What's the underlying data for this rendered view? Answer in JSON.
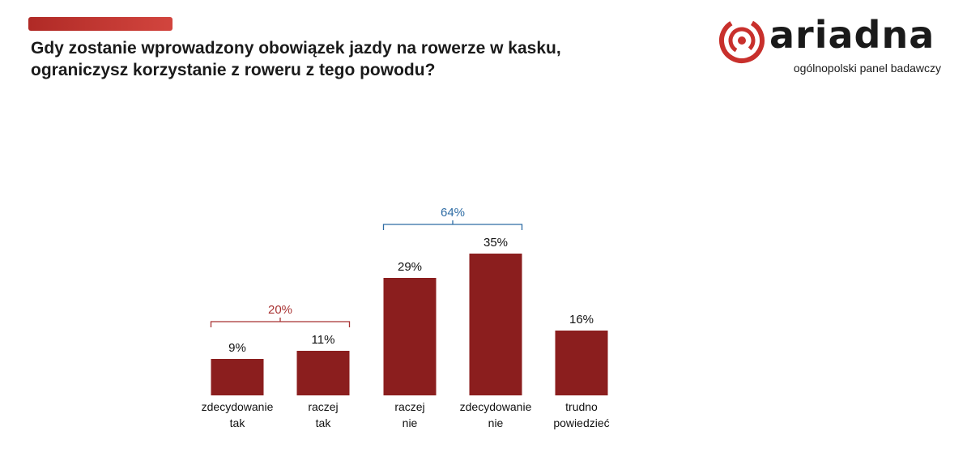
{
  "header": {
    "title_line1": "Gdy zostanie wprowadzony obowiązek jazdy na rowerze w kasku,",
    "title_line2": "ograniczysz korzystanie z roweru z tego powodu?"
  },
  "logo": {
    "wordmark": "ariadna",
    "tagline": "ogólnopolski panel badawczy",
    "icon": "ariadna-spiral-icon",
    "color_red": "#c8302c",
    "color_dark": "#1a1a1a"
  },
  "chart_data": {
    "type": "bar",
    "title": "",
    "xlabel": "",
    "ylabel": "",
    "ylim": [
      0,
      35
    ],
    "grid": false,
    "legend": "none",
    "bar_color": "#8b1e1e",
    "categories": [
      [
        "zdecydowanie",
        "tak"
      ],
      [
        "raczej",
        "tak"
      ],
      [
        "raczej",
        "nie"
      ],
      [
        "zdecydowanie",
        "nie"
      ],
      [
        "trudno",
        "powiedzieć"
      ]
    ],
    "values": [
      9,
      11,
      29,
      35,
      16
    ],
    "value_labels": [
      "9%",
      "11%",
      "29%",
      "35%",
      "16%"
    ],
    "groups": [
      {
        "label": "20%",
        "from": 0,
        "to": 1,
        "color": "#a83232"
      },
      {
        "label": "64%",
        "from": 2,
        "to": 3,
        "color": "#2e6ca4"
      }
    ]
  }
}
